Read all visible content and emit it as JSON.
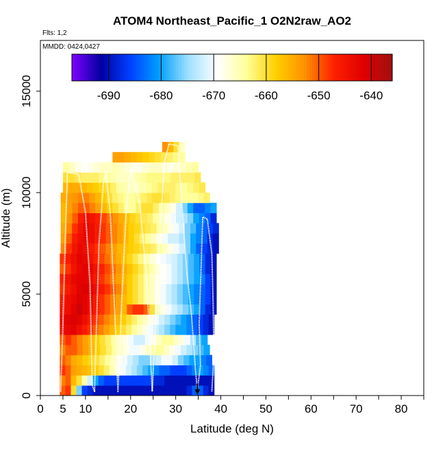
{
  "chart_data": {
    "type": "heatmap",
    "title": "ATOM4 Northeast_Pacific_1 O2N2raw_AO2",
    "flights_note": "Flts: 1,2",
    "dates_note": "MMDD: 0424,0427",
    "xlabel": "Latitude (deg N)",
    "ylabel": "Altitude (m)",
    "xlim": [
      0,
      85
    ],
    "ylim": [
      0,
      17500
    ],
    "x_ticks": [
      0,
      5,
      10,
      20,
      30,
      40,
      50,
      60,
      70,
      80
    ],
    "x_tick_labels": [
      "0",
      "5",
      "10",
      "20",
      "30",
      "40",
      "50",
      "60",
      "70",
      "80"
    ],
    "x_minor_ticks": [
      15,
      25,
      35,
      45,
      55,
      65,
      75,
      85
    ],
    "y_ticks": [
      0,
      5000,
      10000,
      15000
    ],
    "y_tick_labels": [
      "0",
      "5000",
      "10000",
      "15000"
    ],
    "colorbar": {
      "min": -697,
      "max": -636,
      "ticks": [
        -690,
        -680,
        -670,
        -660,
        -650,
        -640
      ],
      "tick_labels": [
        "-690",
        "-680",
        "-670",
        "-660",
        "-650",
        "-640"
      ],
      "colors": [
        "#7F00FF",
        "#0000A0",
        "#0040FF",
        "#00A0FF",
        "#A0E0FF",
        "#FFFFFF",
        "#FFFF99",
        "#FFD000",
        "#FF9000",
        "#FF2000",
        "#E00000",
        "#A01010"
      ]
    },
    "layers": [
      {
        "alt0": 0,
        "alt1": 500,
        "lat0": 4.3,
        "lat1": 38.5,
        "values": [
          -650,
          -648,
          -660,
          -676,
          -686,
          -688,
          -690,
          -690,
          -690,
          -690,
          -690,
          -690,
          -690,
          -690,
          -690,
          -690,
          -690,
          -690,
          -690,
          -690,
          -690,
          -690,
          -690,
          -688,
          -684,
          -684,
          -688,
          -690
        ]
      },
      {
        "alt0": 500,
        "alt1": 1000,
        "lat0": 4.3,
        "lat1": 38.5,
        "values": [
          -652,
          -650,
          -656,
          -660,
          -665,
          -672,
          -680,
          -684,
          -686,
          -686,
          -686,
          -686,
          -686,
          -686,
          -686,
          -686,
          -686,
          -688,
          -688,
          -690,
          -690,
          -690,
          -690,
          -690,
          -690,
          -690,
          -690,
          -690
        ]
      },
      {
        "alt0": 1000,
        "alt1": 1500,
        "lat0": 4.3,
        "lat1": 38.5,
        "values": [
          -648,
          -650,
          -654,
          -655,
          -656,
          -657,
          -658,
          -660,
          -662,
          -665,
          -668,
          -670,
          -672,
          -674,
          -676,
          -678,
          -680,
          -682,
          -684,
          -684,
          -686,
          -686,
          -686,
          -684,
          -682,
          -680,
          -682,
          -684
        ]
      },
      {
        "alt0": 1500,
        "alt1": 2000,
        "lat0": 4.3,
        "lat1": 38.0,
        "values": [
          -650,
          -652,
          -655,
          -656,
          -658,
          -659,
          -660,
          -662,
          -664,
          -666,
          -668,
          -670,
          -672,
          -674,
          -676,
          -676,
          -674,
          -672,
          -670,
          -670,
          -672,
          -676,
          -678,
          -680,
          -680,
          -682,
          -684
        ]
      },
      {
        "alt0": 2000,
        "alt1": 2500,
        "lat0": 4.3,
        "lat1": 37.5,
        "values": [
          -652,
          -650,
          -650,
          -652,
          -654,
          -656,
          -658,
          -660,
          -662,
          -664,
          -666,
          -668,
          -670,
          -670,
          -668,
          -666,
          -664,
          -664,
          -666,
          -668,
          -670,
          -672,
          -674,
          -676,
          -678,
          -680
        ]
      },
      {
        "alt0": 2500,
        "alt1": 3000,
        "lat0": 4.3,
        "lat1": 37.0,
        "values": [
          -650,
          -648,
          -650,
          -652,
          -654,
          -656,
          -658,
          -660,
          -662,
          -664,
          -666,
          -668,
          -670,
          -672,
          -672,
          -670,
          -668,
          -666,
          -664,
          -664,
          -666,
          -668,
          -670,
          -674,
          -678,
          -680
        ]
      },
      {
        "alt0": 3000,
        "alt1": 3500,
        "lat0": 4.3,
        "lat1": 38.5,
        "values": [
          -644,
          -643,
          -642,
          -644,
          -646,
          -648,
          -650,
          -652,
          -654,
          -656,
          -658,
          -660,
          -662,
          -664,
          -666,
          -668,
          -670,
          -672,
          -674,
          -676,
          -678,
          -680,
          -680,
          -682,
          -684,
          -686,
          -688,
          -690
        ]
      },
      {
        "alt0": 3500,
        "alt1": 4000,
        "lat0": 4.3,
        "lat1": 38.5,
        "values": [
          -643,
          -642,
          -641,
          -642,
          -644,
          -646,
          -648,
          -650,
          -652,
          -654,
          -656,
          -658,
          -660,
          -662,
          -664,
          -666,
          -668,
          -670,
          -672,
          -674,
          -676,
          -678,
          -680,
          -682,
          -684,
          -686,
          -688,
          -690
        ]
      },
      {
        "alt0": 4000,
        "alt1": 4500,
        "lat0": 4.3,
        "lat1": 39.0,
        "values": [
          -645,
          -644,
          -642,
          -640,
          -642,
          -644,
          -646,
          -648,
          -650,
          -652,
          -654,
          -656,
          -650,
          -648,
          -648,
          -650,
          -660,
          -666,
          -668,
          -670,
          -672,
          -674,
          -676,
          -678,
          -680,
          -684,
          -688,
          -690
        ]
      },
      {
        "alt0": 4500,
        "alt1": 5000,
        "lat0": 4.3,
        "lat1": 39.0,
        "values": [
          -646,
          -644,
          -643,
          -641,
          -642,
          -644,
          -646,
          -648,
          -650,
          -652,
          -654,
          -656,
          -658,
          -660,
          -662,
          -664,
          -666,
          -668,
          -670,
          -672,
          -674,
          -676,
          -678,
          -680,
          -682,
          -684,
          -686,
          -690
        ]
      },
      {
        "alt0": 5000,
        "alt1": 5500,
        "lat0": 4.3,
        "lat1": 39.0,
        "values": [
          -648,
          -646,
          -644,
          -642,
          -641,
          -642,
          -644,
          -646,
          -648,
          -650,
          -652,
          -655,
          -658,
          -660,
          -662,
          -664,
          -666,
          -668,
          -670,
          -672,
          -674,
          -676,
          -678,
          -680,
          -682,
          -684,
          -686,
          -690
        ]
      },
      {
        "alt0": 5500,
        "alt1": 6000,
        "lat0": 4.3,
        "lat1": 39.0,
        "values": [
          -647,
          -645,
          -643,
          -642,
          -642,
          -644,
          -646,
          -648,
          -650,
          -652,
          -654,
          -656,
          -658,
          -660,
          -662,
          -664,
          -666,
          -668,
          -669,
          -670,
          -672,
          -674,
          -676,
          -678,
          -680,
          -682,
          -686,
          -690
        ]
      },
      {
        "alt0": 6000,
        "alt1": 6500,
        "lat0": 4.3,
        "lat1": 39.0,
        "values": [
          -650,
          -648,
          -645,
          -643,
          -642,
          -643,
          -645,
          -647,
          -649,
          -651,
          -653,
          -655,
          -657,
          -659,
          -661,
          -663,
          -665,
          -667,
          -669,
          -670,
          -672,
          -674,
          -676,
          -678,
          -680,
          -684,
          -688,
          -690
        ]
      },
      {
        "alt0": 6500,
        "alt1": 7000,
        "lat0": 4.3,
        "lat1": 39.0,
        "values": [
          -648,
          -646,
          -644,
          -642,
          -643,
          -645,
          -647,
          -649,
          -651,
          -653,
          -655,
          -657,
          -659,
          -661,
          -663,
          -665,
          -667,
          -669,
          -670,
          -671,
          -672,
          -674,
          -676,
          -678,
          -680,
          -684,
          -688,
          -690
        ]
      },
      {
        "alt0": 7000,
        "alt1": 7500,
        "lat0": 4.5,
        "lat1": 39.5,
        "values": [
          -652,
          -648,
          -645,
          -643,
          -644,
          -646,
          -648,
          -650,
          -652,
          -654,
          -656,
          -657,
          -658,
          -659,
          -660,
          -661,
          -662,
          -664,
          -666,
          -668,
          -670,
          -672,
          -676,
          -680,
          -684,
          -686,
          -688,
          -690
        ]
      },
      {
        "alt0": 7500,
        "alt1": 8000,
        "lat0": 4.5,
        "lat1": 39.5,
        "values": [
          -654,
          -650,
          -646,
          -644,
          -643,
          -644,
          -646,
          -648,
          -650,
          -652,
          -654,
          -656,
          -658,
          -660,
          -662,
          -664,
          -666,
          -668,
          -670,
          -672,
          -672,
          -674,
          -676,
          -680,
          -682,
          -684,
          -688,
          -690
        ]
      },
      {
        "alt0": 8000,
        "alt1": 8500,
        "lat0": 4.5,
        "lat1": 39.5,
        "values": [
          -655,
          -652,
          -648,
          -645,
          -643,
          -644,
          -646,
          -648,
          -650,
          -652,
          -654,
          -656,
          -658,
          -659,
          -660,
          -661,
          -662,
          -664,
          -666,
          -668,
          -670,
          -672,
          -676,
          -678,
          -682,
          -684,
          -686,
          -688
        ]
      },
      {
        "alt0": 8500,
        "alt1": 9000,
        "lat0": 4.5,
        "lat1": 39.0,
        "values": [
          -656,
          -653,
          -650,
          -646,
          -644,
          -645,
          -647,
          -649,
          -651,
          -653,
          -655,
          -657,
          -659,
          -660,
          -661,
          -662,
          -664,
          -666,
          -668,
          -670,
          -672,
          -674,
          -676,
          -680,
          -682,
          -684,
          -688
        ]
      },
      {
        "alt0": 9000,
        "alt1": 9500,
        "lat0": 4.5,
        "lat1": 39.0,
        "values": [
          -656,
          -654,
          -652,
          -650,
          -650,
          -652,
          -654,
          -656,
          -658,
          -660,
          -662,
          -664,
          -664,
          -662,
          -660,
          -660,
          -662,
          -664,
          -666,
          -668,
          -672,
          -676,
          -680,
          -684,
          -684,
          -682,
          -680
        ]
      },
      {
        "alt0": 9500,
        "alt1": 10000,
        "lat0": 4.5,
        "lat1": 37.5,
        "values": [
          -655,
          -654,
          -653,
          -652,
          -652,
          -654,
          -656,
          -658,
          -660,
          -662,
          -663,
          -664,
          -664,
          -663,
          -662,
          -661,
          -660,
          -660,
          -661,
          -662,
          -663,
          -664,
          -664,
          -664,
          -663,
          -662
        ]
      },
      {
        "alt0": 10000,
        "alt1": 10500,
        "lat0": 5.0,
        "lat1": 36.5,
        "values": [
          -656,
          -655,
          -655,
          -656,
          -657,
          -658,
          -659,
          -660,
          -662,
          -664,
          -665,
          -666,
          -666,
          -665,
          -664,
          -663,
          -662,
          -662,
          -662,
          -663,
          -664,
          -663,
          -662,
          -661
        ]
      },
      {
        "alt0": 10500,
        "alt1": 11000,
        "lat0": 5.0,
        "lat1": 35.5,
        "values": [
          -660,
          -660,
          -661,
          -662,
          -662,
          -662,
          -663,
          -664,
          -665,
          -666,
          -666,
          -666,
          -665,
          -664,
          -663,
          -663,
          -663,
          -663,
          -662,
          -662,
          -662,
          -662,
          -661
        ]
      },
      {
        "alt0": 11000,
        "alt1": 11500,
        "lat0": 5.0,
        "lat1": 35.0,
        "values": [
          -664,
          -666,
          -668,
          -669,
          -668,
          -667,
          -666,
          -666,
          -665,
          -666,
          -667,
          -668,
          -668,
          -667,
          -666,
          -666,
          -667,
          -668,
          -667,
          -666,
          -665,
          -664
        ]
      },
      {
        "alt0": 11500,
        "alt1": 12000,
        "lat0": 16.0,
        "lat1": 32.0,
        "values": [
          -654,
          -654,
          -655,
          -656,
          -657,
          -658,
          -659,
          -660,
          -661,
          -662,
          -663,
          -664
        ]
      },
      {
        "alt0": 12000,
        "alt1": 12500,
        "lat0": 27.0,
        "lat1": 32.0,
        "values": [
          -653,
          -656,
          -660,
          -666
        ]
      }
    ],
    "flight_tracks": [
      [
        [
          4.5,
          200
        ],
        [
          5.0,
          3500
        ],
        [
          5.5,
          7500
        ],
        [
          6.0,
          11000
        ],
        [
          8.5,
          10900
        ],
        [
          10.0,
          9000
        ],
        [
          11.0,
          5500
        ],
        [
          11.5,
          500
        ],
        [
          12.0,
          200
        ],
        [
          13.0,
          7500
        ],
        [
          14.0,
          10500
        ],
        [
          14.5,
          11000
        ],
        [
          15.5,
          9000
        ],
        [
          16.5,
          4000
        ],
        [
          17.2,
          200
        ],
        [
          18.0,
          4500
        ],
        [
          19.0,
          9000
        ],
        [
          20.0,
          11200
        ],
        [
          22.0,
          9500
        ],
        [
          23.5,
          6000
        ],
        [
          24.8,
          200
        ],
        [
          25.5,
          3500
        ],
        [
          26.5,
          8000
        ],
        [
          27.5,
          11500
        ],
        [
          28.5,
          12400
        ],
        [
          30.5,
          12300
        ],
        [
          31.5,
          9000
        ],
        [
          32.5,
          6000
        ],
        [
          33.5,
          4000
        ],
        [
          34.3,
          1500
        ],
        [
          34.8,
          200
        ]
      ],
      [
        [
          34.8,
          300
        ],
        [
          35.5,
          1500
        ],
        [
          35.2,
          3500
        ],
        [
          35.5,
          5500
        ],
        [
          36.0,
          8800
        ],
        [
          37.0,
          8700
        ],
        [
          38.0,
          7000
        ],
        [
          38.3,
          4500
        ],
        [
          38.5,
          2000
        ],
        [
          38.0,
          200
        ]
      ]
    ],
    "marker": {
      "lat": 34.8,
      "alt_top": 600,
      "alt_bottom": 0
    }
  }
}
